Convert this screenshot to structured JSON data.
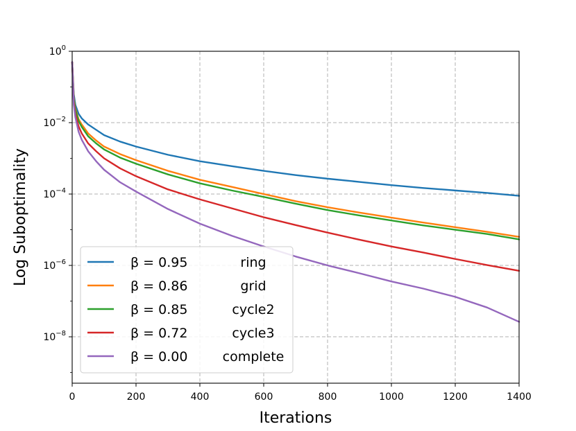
{
  "chart_data": {
    "type": "line",
    "title": "",
    "xlabel": "Iterations",
    "ylabel": "Log Suboptimality",
    "xscale": "linear",
    "yscale": "log",
    "xlim": [
      0,
      1400
    ],
    "ylim_exponent": [
      -9.3,
      0
    ],
    "x_ticks": [
      0,
      200,
      400,
      600,
      800,
      1000,
      1200,
      1400
    ],
    "x_tick_labels": [
      "0",
      "200",
      "400",
      "600",
      "800",
      "1000",
      "1200",
      "1400"
    ],
    "y_tick_exponents": [
      0,
      -2,
      -4,
      -6,
      -8
    ],
    "y_tick_labels": [
      {
        "base": "10",
        "exp": "0"
      },
      {
        "base": "10",
        "exp": "−2"
      },
      {
        "base": "10",
        "exp": "−4"
      },
      {
        "base": "10",
        "exp": "−6"
      },
      {
        "base": "10",
        "exp": "−8"
      }
    ],
    "grid": true,
    "legend_position": "lower-left",
    "series": [
      {
        "name": "ring",
        "beta_label": "β = 0.95",
        "color": "#1f77b4",
        "x": [
          0,
          5,
          10,
          20,
          30,
          50,
          75,
          100,
          150,
          200,
          300,
          400,
          500,
          600,
          700,
          800,
          900,
          1000,
          1100,
          1200,
          1300,
          1400
        ],
        "log10_y": [
          -0.3,
          -1.2,
          -1.5,
          -1.75,
          -1.88,
          -2.05,
          -2.2,
          -2.35,
          -2.53,
          -2.67,
          -2.9,
          -3.08,
          -3.22,
          -3.35,
          -3.47,
          -3.57,
          -3.66,
          -3.75,
          -3.83,
          -3.9,
          -3.97,
          -4.05
        ]
      },
      {
        "name": "grid",
        "beta_label": "β = 0.86",
        "color": "#ff7f0e",
        "x": [
          0,
          5,
          10,
          20,
          30,
          50,
          75,
          100,
          150,
          200,
          300,
          400,
          500,
          600,
          700,
          800,
          900,
          1000,
          1100,
          1200,
          1300,
          1400
        ],
        "log10_y": [
          -0.3,
          -1.3,
          -1.6,
          -1.9,
          -2.05,
          -2.3,
          -2.5,
          -2.67,
          -2.88,
          -3.05,
          -3.35,
          -3.6,
          -3.8,
          -4.0,
          -4.2,
          -4.37,
          -4.52,
          -4.66,
          -4.8,
          -4.93,
          -5.06,
          -5.2
        ]
      },
      {
        "name": "cycle2",
        "beta_label": "β = 0.85",
        "color": "#2ca02c",
        "x": [
          0,
          5,
          10,
          20,
          30,
          50,
          75,
          100,
          150,
          200,
          300,
          400,
          500,
          600,
          700,
          800,
          900,
          1000,
          1100,
          1200,
          1300,
          1400
        ],
        "log10_y": [
          -0.3,
          -1.32,
          -1.63,
          -1.95,
          -2.12,
          -2.38,
          -2.58,
          -2.75,
          -2.98,
          -3.15,
          -3.45,
          -3.7,
          -3.9,
          -4.08,
          -4.27,
          -4.45,
          -4.6,
          -4.74,
          -4.88,
          -5.0,
          -5.12,
          -5.27
        ]
      },
      {
        "name": "cycle3",
        "beta_label": "β = 0.72",
        "color": "#d62728",
        "x": [
          0,
          5,
          10,
          20,
          30,
          50,
          75,
          100,
          150,
          200,
          300,
          400,
          500,
          600,
          700,
          800,
          900,
          1000,
          1100,
          1200,
          1300,
          1400
        ],
        "log10_y": [
          -0.3,
          -1.4,
          -1.75,
          -2.1,
          -2.3,
          -2.58,
          -2.8,
          -3.0,
          -3.28,
          -3.5,
          -3.87,
          -4.15,
          -4.4,
          -4.65,
          -4.87,
          -5.08,
          -5.28,
          -5.47,
          -5.64,
          -5.82,
          -5.99,
          -6.15
        ]
      },
      {
        "name": "complete",
        "beta_label": "β = 0.00",
        "color": "#9467bd",
        "x": [
          0,
          5,
          10,
          20,
          30,
          50,
          75,
          100,
          150,
          200,
          300,
          400,
          500,
          600,
          700,
          800,
          900,
          1000,
          1100,
          1200,
          1300,
          1400
        ],
        "log10_y": [
          -0.3,
          -1.5,
          -1.85,
          -2.25,
          -2.48,
          -2.8,
          -3.08,
          -3.32,
          -3.67,
          -3.93,
          -4.42,
          -4.83,
          -5.17,
          -5.47,
          -5.75,
          -6.0,
          -6.22,
          -6.45,
          -6.65,
          -6.88,
          -7.18,
          -7.58
        ]
      }
    ]
  }
}
